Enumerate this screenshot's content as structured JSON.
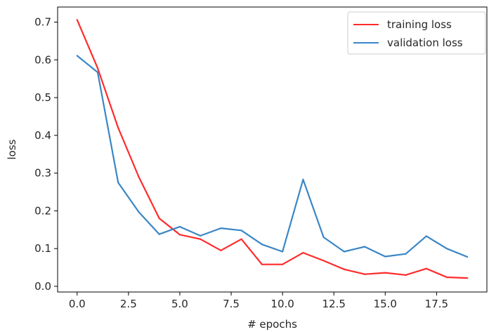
{
  "chart_data": {
    "type": "line",
    "title": "",
    "xlabel": "# epochs",
    "ylabel": "loss",
    "xlim": [
      -0.95,
      19.95
    ],
    "ylim": [
      -0.015,
      0.74
    ],
    "xticks": [
      0.0,
      2.5,
      5.0,
      7.5,
      10.0,
      12.5,
      15.0,
      17.5
    ],
    "xtick_labels": [
      "0.0",
      "2.5",
      "5.0",
      "7.5",
      "10.0",
      "12.5",
      "15.0",
      "17.5"
    ],
    "yticks": [
      0.0,
      0.1,
      0.2,
      0.3,
      0.4,
      0.5,
      0.6,
      0.7
    ],
    "ytick_labels": [
      "0.0",
      "0.1",
      "0.2",
      "0.3",
      "0.4",
      "0.5",
      "0.6",
      "0.7"
    ],
    "grid": false,
    "legend_position": "top-right",
    "x": [
      0,
      1,
      2,
      3,
      4,
      5,
      6,
      7,
      8,
      9,
      10,
      11,
      12,
      13,
      14,
      15,
      16,
      17,
      18,
      19
    ],
    "series": [
      {
        "name": "training loss",
        "color": "#ff2b2b",
        "values": [
          0.706,
          0.578,
          0.42,
          0.29,
          0.18,
          0.137,
          0.125,
          0.095,
          0.125,
          0.058,
          0.058,
          0.089,
          0.068,
          0.045,
          0.032,
          0.036,
          0.03,
          0.047,
          0.024,
          0.022
        ]
      },
      {
        "name": "validation loss",
        "color": "#3a86c6",
        "values": [
          0.611,
          0.567,
          0.275,
          0.197,
          0.138,
          0.158,
          0.134,
          0.154,
          0.148,
          0.111,
          0.092,
          0.283,
          0.13,
          0.092,
          0.105,
          0.079,
          0.086,
          0.133,
          0.1,
          0.078
        ]
      }
    ]
  }
}
